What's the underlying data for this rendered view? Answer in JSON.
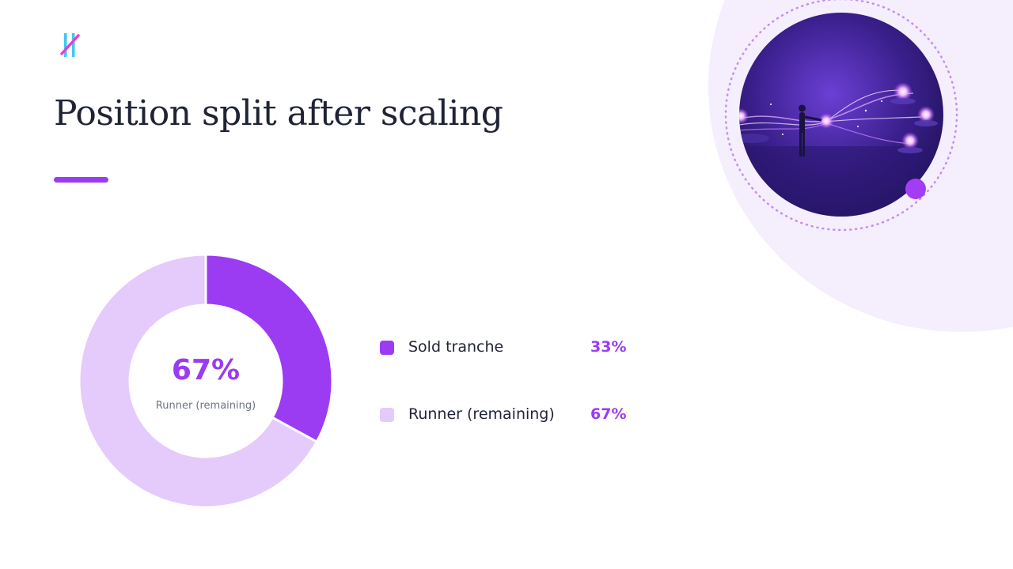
{
  "slide": {
    "title": "Position split after scaling",
    "logo_icon": "brand-logo-icon",
    "hero_image": "glowing-network-illustration",
    "accent_color": "#9b3bf2",
    "background_shape_color": "#f4eefd"
  },
  "chart_data": {
    "type": "pie",
    "variant": "donut",
    "center_value": "67%",
    "center_label": "Runner (remaining)",
    "slices": [
      {
        "label": "Sold tranche",
        "value": 33,
        "display": "33%",
        "color": "#9b3bf2"
      },
      {
        "label": "Runner (remaining)",
        "value": 67,
        "display": "67%",
        "color": "#e4cbfb"
      }
    ],
    "legend_position": "right"
  }
}
